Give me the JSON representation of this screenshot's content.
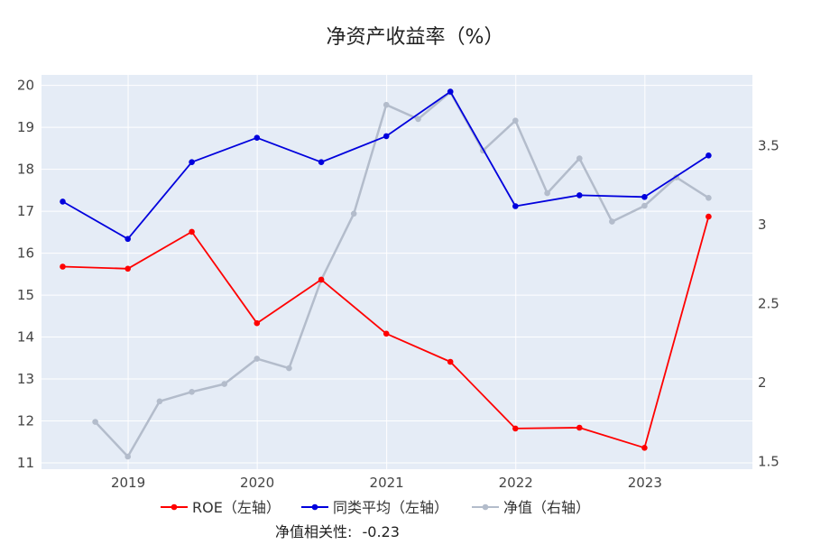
{
  "chart_data": {
    "type": "line",
    "title": "净资产收益率（%）",
    "xlabel": "",
    "ylabel": "",
    "x_ticks": [
      "2019",
      "2020",
      "2021",
      "2022",
      "2023"
    ],
    "y_left_ticks": [
      "11",
      "12",
      "13",
      "14",
      "15",
      "16",
      "17",
      "18",
      "19",
      "20"
    ],
    "y_right_ticks": [
      "1.5",
      "2",
      "2.5",
      "3",
      "3.5"
    ],
    "y_left_range": [
      10.85,
      20.25
    ],
    "y_right_range": [
      1.45,
      3.95
    ],
    "x_range": [
      "2018-05-01",
      "2023-11-01"
    ],
    "grid": true,
    "legend_placement": "bottom-center",
    "series": [
      {
        "name": "ROE（左轴）",
        "axis": "left",
        "color": "#ff0000",
        "points": [
          {
            "x": "2018-06-30",
            "y": 15.68
          },
          {
            "x": "2018-12-31",
            "y": 15.63
          },
          {
            "x": "2019-06-30",
            "y": 16.51
          },
          {
            "x": "2019-12-31",
            "y": 14.33
          },
          {
            "x": "2020-06-30",
            "y": 15.37
          },
          {
            "x": "2020-12-31",
            "y": 14.08
          },
          {
            "x": "2021-06-30",
            "y": 13.41
          },
          {
            "x": "2021-12-31",
            "y": 11.82
          },
          {
            "x": "2022-06-30",
            "y": 11.84
          },
          {
            "x": "2022-12-31",
            "y": 11.36
          },
          {
            "x": "2023-06-30",
            "y": 16.87
          }
        ]
      },
      {
        "name": "同类平均（左轴）",
        "axis": "left",
        "color": "#0000dd",
        "points": [
          {
            "x": "2018-06-30",
            "y": 17.23
          },
          {
            "x": "2018-12-31",
            "y": 16.34
          },
          {
            "x": "2019-06-30",
            "y": 18.17
          },
          {
            "x": "2019-12-31",
            "y": 18.75
          },
          {
            "x": "2020-06-30",
            "y": 18.17
          },
          {
            "x": "2020-12-31",
            "y": 18.79
          },
          {
            "x": "2021-06-30",
            "y": 19.85
          },
          {
            "x": "2021-12-31",
            "y": 17.12
          },
          {
            "x": "2022-06-30",
            "y": 17.38
          },
          {
            "x": "2022-12-31",
            "y": 17.34
          },
          {
            "x": "2023-06-30",
            "y": 18.33
          }
        ]
      },
      {
        "name": "净值（右轴）",
        "axis": "right",
        "color": "#b3bccb",
        "points": [
          {
            "x": "2018-09-30",
            "y": 1.75
          },
          {
            "x": "2018-12-31",
            "y": 1.53
          },
          {
            "x": "2019-03-31",
            "y": 1.88
          },
          {
            "x": "2019-06-30",
            "y": 1.94
          },
          {
            "x": "2019-09-30",
            "y": 1.99
          },
          {
            "x": "2019-12-31",
            "y": 2.15
          },
          {
            "x": "2020-03-31",
            "y": 2.09
          },
          {
            "x": "2020-06-30",
            "y": 2.65
          },
          {
            "x": "2020-09-30",
            "y": 3.07
          },
          {
            "x": "2020-12-31",
            "y": 3.76
          },
          {
            "x": "2021-03-31",
            "y": 3.67
          },
          {
            "x": "2021-06-30",
            "y": 3.84
          },
          {
            "x": "2021-09-30",
            "y": 3.47
          },
          {
            "x": "2021-12-31",
            "y": 3.66
          },
          {
            "x": "2022-03-31",
            "y": 3.2
          },
          {
            "x": "2022-06-30",
            "y": 3.42
          },
          {
            "x": "2022-09-30",
            "y": 3.02
          },
          {
            "x": "2022-12-31",
            "y": 3.12
          },
          {
            "x": "2023-03-31",
            "y": 3.3
          },
          {
            "x": "2023-06-30",
            "y": 3.17
          }
        ]
      }
    ],
    "annotations": [
      {
        "label": "净值相关性:",
        "value": "-0.23"
      }
    ]
  }
}
